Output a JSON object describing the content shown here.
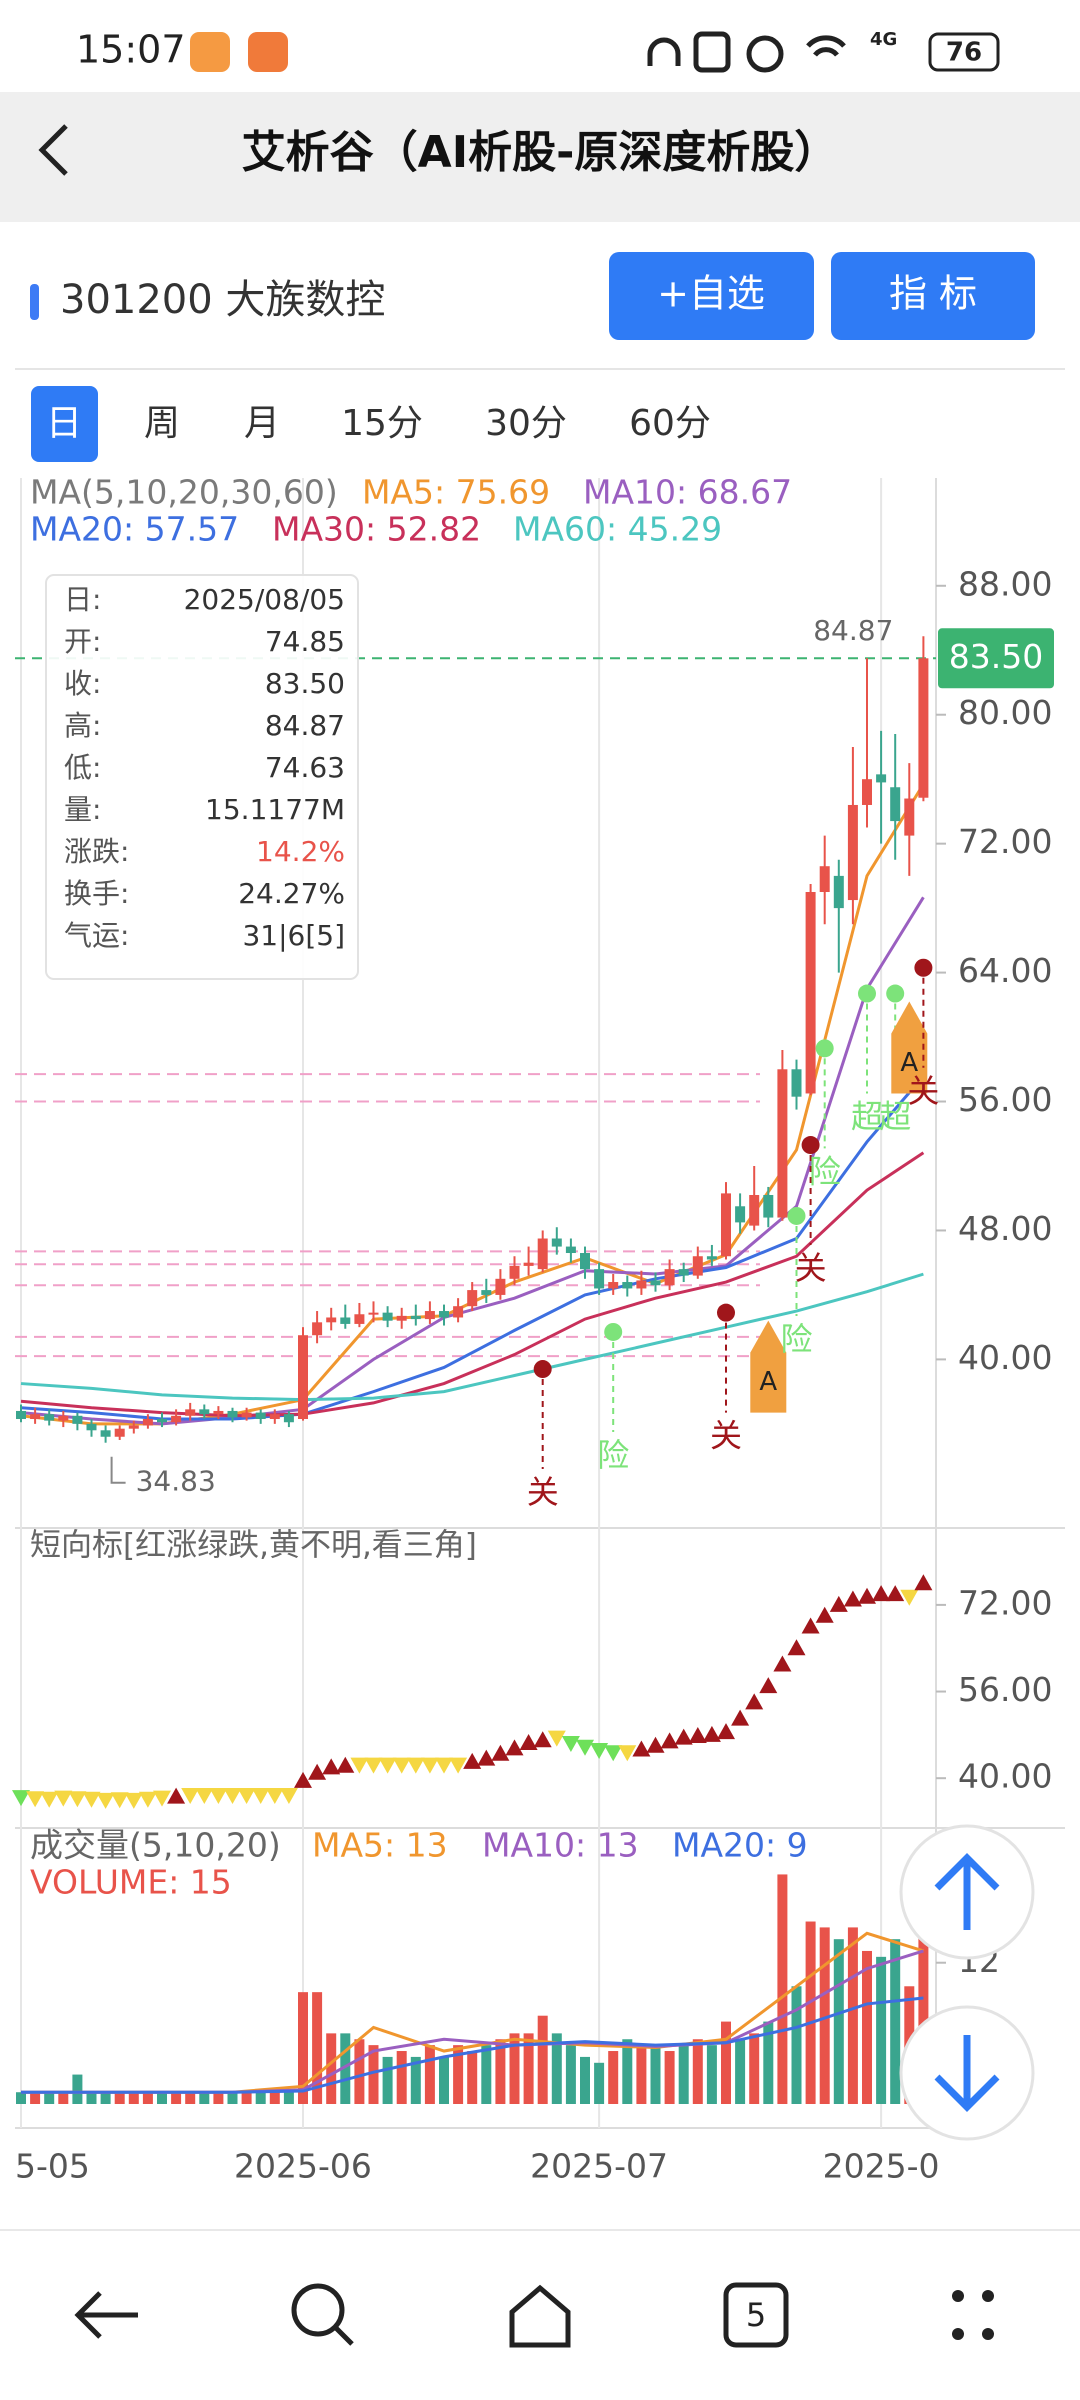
{
  "status": {
    "time": "15:07",
    "network": "4G",
    "battery": "76"
  },
  "header": {
    "title": "艾析谷（AI析股-原深度析股）"
  },
  "stock": {
    "name": "301200 大族数控",
    "buttons": [
      "+自选",
      "指 标"
    ]
  },
  "tabs": {
    "items": [
      "日",
      "周",
      "月",
      "15分",
      "30分",
      "60分"
    ],
    "selected": 0
  },
  "chart": {
    "type": "candlestick",
    "legend": [
      {
        "text": "MA(5,10,20,30,60)",
        "color": "#7a7a7a"
      },
      {
        "text": "MA5: 75.69",
        "color": "#f0962e"
      },
      {
        "text": "MA10: 68.67",
        "color": "#9a5fc0"
      },
      {
        "text": "MA20: 57.57",
        "color": "#3d6fe0"
      },
      {
        "text": "MA30: 52.82",
        "color": "#c8305a"
      },
      {
        "text": "MA60: 45.29",
        "color": "#4cc6c0"
      }
    ],
    "categories": [
      "5-05",
      null,
      null,
      null,
      null,
      null,
      null,
      null,
      null,
      null,
      null,
      null,
      null,
      null,
      null,
      null,
      null,
      null,
      null,
      null,
      "2025-06",
      null,
      null,
      null,
      null,
      null,
      null,
      null,
      null,
      null,
      null,
      null,
      null,
      null,
      null,
      null,
      null,
      null,
      null,
      null,
      null,
      "2025-07",
      null,
      null,
      null,
      null,
      null,
      null,
      null,
      null,
      null,
      null,
      null,
      null,
      null,
      null,
      null,
      null,
      null,
      null,
      null,
      "2025-0",
      null,
      null,
      null
    ],
    "up_color": "#e8534a",
    "down_color": "#3aa58e",
    "candles": [
      [
        36.8,
        36.3,
        37.2,
        36.1
      ],
      [
        36.3,
        36.6,
        37.0,
        36.0
      ],
      [
        36.6,
        36.2,
        36.9,
        35.9
      ],
      [
        36.2,
        36.5,
        36.8,
        35.8
      ],
      [
        36.5,
        36.0,
        36.7,
        35.6
      ],
      [
        36.0,
        35.6,
        36.3,
        35.2
      ],
      [
        35.6,
        35.2,
        35.9,
        34.83
      ],
      [
        35.2,
        35.7,
        35.9,
        35.0
      ],
      [
        35.7,
        35.9,
        36.2,
        35.4
      ],
      [
        35.9,
        36.3,
        36.6,
        35.7
      ],
      [
        36.3,
        36.1,
        36.7,
        35.8
      ],
      [
        36.1,
        36.5,
        36.9,
        35.9
      ],
      [
        36.5,
        36.9,
        37.3,
        36.2
      ],
      [
        36.9,
        36.6,
        37.2,
        36.3
      ],
      [
        36.6,
        36.8,
        37.1,
        36.3
      ],
      [
        36.8,
        36.4,
        37.0,
        36.1
      ],
      [
        36.4,
        36.7,
        37.0,
        36.2
      ],
      [
        36.7,
        36.3,
        36.9,
        36.0
      ],
      [
        36.3,
        36.6,
        36.9,
        36.0
      ],
      [
        36.6,
        36.1,
        36.8,
        35.8
      ],
      [
        36.3,
        41.5,
        42.0,
        36.2
      ],
      [
        41.5,
        42.3,
        43.0,
        41.0
      ],
      [
        42.3,
        42.6,
        43.2,
        41.8
      ],
      [
        42.6,
        42.2,
        43.4,
        41.9
      ],
      [
        42.2,
        42.8,
        43.5,
        42.0
      ],
      [
        42.8,
        42.9,
        43.6,
        42.3
      ],
      [
        42.9,
        42.4,
        43.3,
        42.0
      ],
      [
        42.4,
        42.7,
        43.2,
        41.9
      ],
      [
        42.7,
        42.5,
        43.4,
        42.1
      ],
      [
        42.5,
        43.0,
        43.6,
        42.2
      ],
      [
        43.0,
        42.6,
        43.4,
        42.1
      ],
      [
        42.6,
        43.3,
        43.8,
        42.3
      ],
      [
        43.3,
        44.3,
        44.8,
        43.0
      ],
      [
        44.3,
        44.0,
        45.0,
        43.5
      ],
      [
        44.0,
        45.0,
        45.6,
        43.7
      ],
      [
        45.0,
        45.8,
        46.4,
        44.6
      ],
      [
        45.8,
        46.0,
        47.0,
        45.2
      ],
      [
        45.6,
        47.5,
        48.0,
        45.4
      ],
      [
        47.5,
        47.0,
        48.2,
        46.5
      ],
      [
        47.0,
        46.6,
        47.5,
        46.0
      ],
      [
        46.6,
        45.6,
        47.0,
        45.0
      ],
      [
        45.6,
        44.4,
        46.0,
        44.0
      ],
      [
        44.4,
        44.8,
        45.3,
        44.0
      ],
      [
        44.8,
        44.4,
        45.2,
        43.9
      ],
      [
        44.4,
        44.9,
        45.5,
        44.0
      ],
      [
        44.9,
        44.6,
        45.4,
        44.2
      ],
      [
        44.6,
        45.6,
        46.2,
        44.3
      ],
      [
        45.6,
        45.2,
        46.0,
        44.8
      ],
      [
        45.2,
        46.4,
        47.0,
        45.0
      ],
      [
        46.4,
        46.2,
        47.1,
        45.8
      ],
      [
        46.4,
        50.3,
        51.0,
        46.2
      ],
      [
        49.5,
        48.5,
        50.3,
        47.8
      ],
      [
        48.3,
        50.2,
        52.0,
        48.0
      ],
      [
        50.2,
        48.8,
        50.7,
        48.2
      ],
      [
        48.8,
        58.0,
        59.2,
        48.6
      ],
      [
        58.0,
        56.3,
        58.6,
        55.5
      ],
      [
        56.5,
        69.0,
        69.5,
        56.4
      ],
      [
        69.0,
        70.6,
        72.5,
        67.0
      ],
      [
        70.0,
        68.0,
        71.0,
        64.0
      ],
      [
        68.5,
        74.4,
        78.0,
        67.0
      ],
      [
        74.4,
        76.0,
        83.5,
        73.0
      ],
      [
        76.3,
        75.8,
        79.0,
        72.0
      ],
      [
        75.5,
        73.4,
        78.8,
        71.0
      ],
      [
        72.5,
        74.8,
        77.0,
        70.0
      ],
      [
        74.85,
        83.5,
        84.87,
        74.63
      ]
    ],
    "ma_x": [
      0,
      5,
      10,
      15,
      20,
      25,
      30,
      35,
      40,
      45,
      50,
      55,
      60,
      64
    ],
    "ma": [
      {
        "color": "#f0962e",
        "values": [
          36.5,
          36.0,
          36.0,
          36.6,
          37.5,
          42.5,
          42.7,
          44.8,
          46.3,
          44.7,
          46.5,
          53,
          70,
          75.69
        ]
      },
      {
        "color": "#9a5fc0",
        "values": [
          36.7,
          36.3,
          36.0,
          36.4,
          36.9,
          40.0,
          42.6,
          43.8,
          45.5,
          45.3,
          45.8,
          49.5,
          63,
          68.67
        ]
      },
      {
        "color": "#3d6fe0",
        "values": [
          37.0,
          36.7,
          36.3,
          36.3,
          36.6,
          38.0,
          39.5,
          41.8,
          44.0,
          45.0,
          45.7,
          47.5,
          53.5,
          57.57
        ]
      },
      {
        "color": "#c8305a",
        "values": [
          37.4,
          37.0,
          36.7,
          36.5,
          36.6,
          37.3,
          38.5,
          40.3,
          42.5,
          43.8,
          44.8,
          46.4,
          50.5,
          52.82
        ]
      },
      {
        "color": "#4cc6c0",
        "values": [
          38.5,
          38.2,
          37.8,
          37.6,
          37.5,
          37.6,
          38.0,
          39.0,
          40.0,
          41.0,
          42.0,
          43.0,
          44.2,
          45.29
        ]
      }
    ],
    "levels": [
      57.7,
      56.0,
      46.7,
      45.9,
      44.6,
      41.4,
      40.2
    ],
    "level_color": "#f0a0c8",
    "last_price": {
      "value": 83.5,
      "label": "83.50"
    },
    "last_color": "#3cb371",
    "ylim": [
      29.6,
      89.6
    ],
    "yticks": [
      {
        "value": 88,
        "label": "88.00"
      },
      {
        "value": 80,
        "label": "80.00"
      },
      {
        "value": 72,
        "label": "72.00"
      },
      {
        "value": 64,
        "label": "64.00"
      },
      {
        "value": 56,
        "label": "56.00"
      },
      {
        "value": 48,
        "label": "48.00"
      },
      {
        "value": 40,
        "label": "40.00"
      }
    ],
    "annotations": [
      {
        "text": "关",
        "index": 37,
        "price": 39.4,
        "color": "#a0161b"
      },
      {
        "text": "险",
        "index": 42,
        "price": 41.7,
        "color": "#7de37a"
      },
      {
        "text": "关",
        "index": 50,
        "price": 42.9,
        "color": "#a0161b"
      },
      {
        "text": "A",
        "index": 53,
        "price": 42.9,
        "color": "#f0a040"
      },
      {
        "text": "险",
        "index": 55,
        "price": 48.9,
        "color": "#7de37a"
      },
      {
        "text": "关",
        "index": 56,
        "price": 53.3,
        "color": "#a0161b"
      },
      {
        "text": "险",
        "index": 57,
        "price": 59.3,
        "color": "#7de37a"
      },
      {
        "text": "超",
        "index": 60,
        "price": 62.7,
        "color": "#7de37a"
      },
      {
        "text": "超",
        "index": 62,
        "price": 62.7,
        "color": "#7de37a"
      },
      {
        "text": "A",
        "index": 63,
        "price": 62.7,
        "color": "#f0a040"
      },
      {
        "text": "关",
        "index": 64,
        "price": 64.3,
        "color": "#a0161b"
      }
    ]
  },
  "tooltip": {
    "rows": [
      {
        "label": "日:",
        "value": "2025/08/05"
      },
      {
        "label": "开:",
        "value": "74.85"
      },
      {
        "label": "收:",
        "value": "83.50"
      },
      {
        "label": "高:",
        "value": "84.87"
      },
      {
        "label": "低:",
        "value": "74.63"
      },
      {
        "label": "量:",
        "value": "15.1177M"
      },
      {
        "label": "涨跌:",
        "value": "14.2%",
        "color": "#e8534a"
      },
      {
        "label": "换手:",
        "value": "24.27%"
      },
      {
        "label": "气运:",
        "value": "31|6[5]"
      }
    ]
  },
  "short": {
    "title": "短向标[红涨绿跌,黄不明,看三角]",
    "up_color": "#a0161b",
    "values": [
      36.5,
      36.3,
      36.2,
      36.4,
      36.3,
      36.2,
      36.0,
      36.1,
      36.0,
      36.2,
      36.4,
      36.6,
      36.9,
      36.9,
      36.9,
      36.9,
      36.9,
      36.9,
      36.9,
      36.9,
      39.5,
      41,
      42,
      42.3,
      42.5,
      42.5,
      42.5,
      42.5,
      42.5,
      42.5,
      42.5,
      42.5,
      43,
      43.6,
      44.5,
      45.5,
      46.5,
      47,
      47.5,
      46.5,
      45.8,
      45.2,
      44.8,
      44.8,
      45.3,
      46,
      46.8,
      47.5,
      47.8,
      48,
      48.5,
      51,
      54,
      57,
      61,
      64,
      68,
      70,
      72,
      73,
      73.5,
      74,
      74,
      73.5,
      76
    ],
    "marker_colors": [
      "#6ee05a",
      "#f5d742",
      "#f5d742",
      "#f5d742",
      "#f5d742",
      "#f5d742",
      "#f5d742",
      "#f5d742",
      "#f5d742",
      "#f5d742",
      "#f5d742",
      "#a0161b",
      "#f5d742",
      "#f5d742",
      "#f5d742",
      "#f5d742",
      "#f5d742",
      "#f5d742",
      "#f5d742",
      "#f5d742",
      "#a0161b",
      "#a0161b",
      "#a0161b",
      "#a0161b",
      "#f5d742",
      "#f5d742",
      "#f5d742",
      "#f5d742",
      "#f5d742",
      "#f5d742",
      "#f5d742",
      "#f5d742",
      "#a0161b",
      "#a0161b",
      "#a0161b",
      "#a0161b",
      "#a0161b",
      "#a0161b",
      "#f5d742",
      "#6ee05a",
      "#6ee05a",
      "#6ee05a",
      "#6ee05a",
      "#f5d742",
      "#a0161b",
      "#a0161b",
      "#a0161b",
      "#a0161b",
      "#a0161b",
      "#a0161b",
      "#a0161b",
      "#a0161b",
      "#a0161b",
      "#a0161b",
      "#a0161b",
      "#a0161b",
      "#a0161b",
      "#a0161b",
      "#a0161b",
      "#a0161b",
      "#a0161b",
      "#a0161b",
      "#a0161b",
      "#f5d742",
      "#a0161b"
    ],
    "ylim": [
      30.8,
      86.2
    ],
    "yticks": [
      {
        "value": 72,
        "label": "72.00"
      },
      {
        "value": 56,
        "label": "56.00"
      },
      {
        "value": 40,
        "label": "40.00"
      }
    ]
  },
  "volume": {
    "title": "成交量(5,10,20)",
    "legend": [
      {
        "text": "MA5: 13",
        "color": "#f0962e"
      },
      {
        "text": "MA10: 13",
        "color": "#9a5fc0"
      },
      {
        "text": "MA20: 9",
        "color": "#3d6fe0"
      },
      {
        "text": "VOLUME: 15",
        "color": "#e8534a"
      }
    ],
    "values": [
      1,
      1,
      1,
      1,
      2.5,
      1,
      1,
      1,
      1,
      1,
      1,
      1,
      1,
      1,
      1,
      1,
      1,
      1,
      1,
      1,
      9.5,
      9.5,
      6,
      6,
      5.5,
      5,
      4,
      4.5,
      4,
      5,
      4,
      5,
      4.5,
      5,
      5.5,
      6,
      6,
      7.5,
      6,
      5,
      4,
      3.5,
      4.5,
      5.5,
      5,
      5,
      4.5,
      5,
      5.5,
      5,
      7,
      5.5,
      6,
      7,
      19.5,
      10,
      15.5,
      15,
      14,
      15,
      13,
      12.5,
      14,
      10,
      15
    ],
    "ma": [
      {
        "color": "#f0962e",
        "values": [
          1,
          1,
          1,
          1,
          1.5,
          6.5,
          4.5,
          5.5,
          5,
          4.8,
          5.5,
          10,
          14.5,
          13
        ]
      },
      {
        "color": "#9a5fc0",
        "values": [
          1,
          1,
          1,
          1,
          1.2,
          4.5,
          5.5,
          5,
          5.2,
          4.9,
          5.2,
          8,
          11.5,
          13
        ]
      },
      {
        "color": "#3d6fe0",
        "values": [
          1,
          1,
          1,
          1,
          1.1,
          2.7,
          4,
          5,
          5.3,
          5,
          5.2,
          6.5,
          8.5,
          9
        ]
      }
    ],
    "ylim": [
      0,
      22
    ],
    "yticks": [
      12
    ]
  },
  "nav": {
    "tabs_count": "5"
  }
}
